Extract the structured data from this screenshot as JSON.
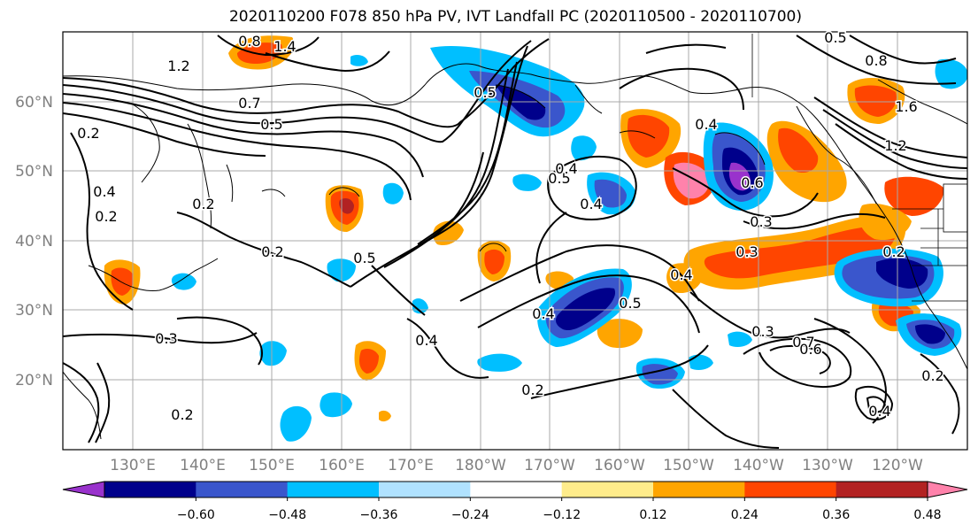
{
  "title": "2020110200 F078 850 hPa PV, IVT Landfall PC (2020110500 - 2020110700)",
  "latitude_labels": [
    "60°N",
    "50°N",
    "40°N",
    "30°N",
    "20°N"
  ],
  "longitude_labels": [
    "130°E",
    "140°E",
    "150°E",
    "160°E",
    "170°E",
    "180°W",
    "170°W",
    "160°W",
    "150°W",
    "140°W",
    "130°W",
    "120°W"
  ],
  "colorbar": {
    "tick_labels": [
      "−0.60",
      "−0.48",
      "−0.36",
      "−0.24",
      "−0.12",
      "0.12",
      "0.24",
      "0.36",
      "0.48",
      "0.60"
    ],
    "colors": [
      "#9932cc",
      "#00008b",
      "#3a56cc",
      "#00bfff",
      "#b0e2ff",
      "#ffffff",
      "#ffec8b",
      "#ffa500",
      "#ff4500",
      "#b22222",
      "#ff82ab"
    ]
  },
  "contour_labels": [
    "0.8",
    "1.4",
    "1.2",
    "0.7",
    "0.5",
    "0.2",
    "0.2",
    "0.4",
    "0.2",
    "0.2",
    "0.3",
    "0.2",
    "0.5",
    "0.4",
    "0.5",
    "0.4",
    "0.2",
    "0.5",
    "0.4",
    "0.4",
    "0.3",
    "0.3",
    "0.4",
    "0.6",
    "0.7",
    "0.6",
    "0.2",
    "0.4",
    "0.3",
    "0.5",
    "0.5",
    "0.8",
    "1.6",
    "0.4",
    "0.2",
    "1.2"
  ]
}
